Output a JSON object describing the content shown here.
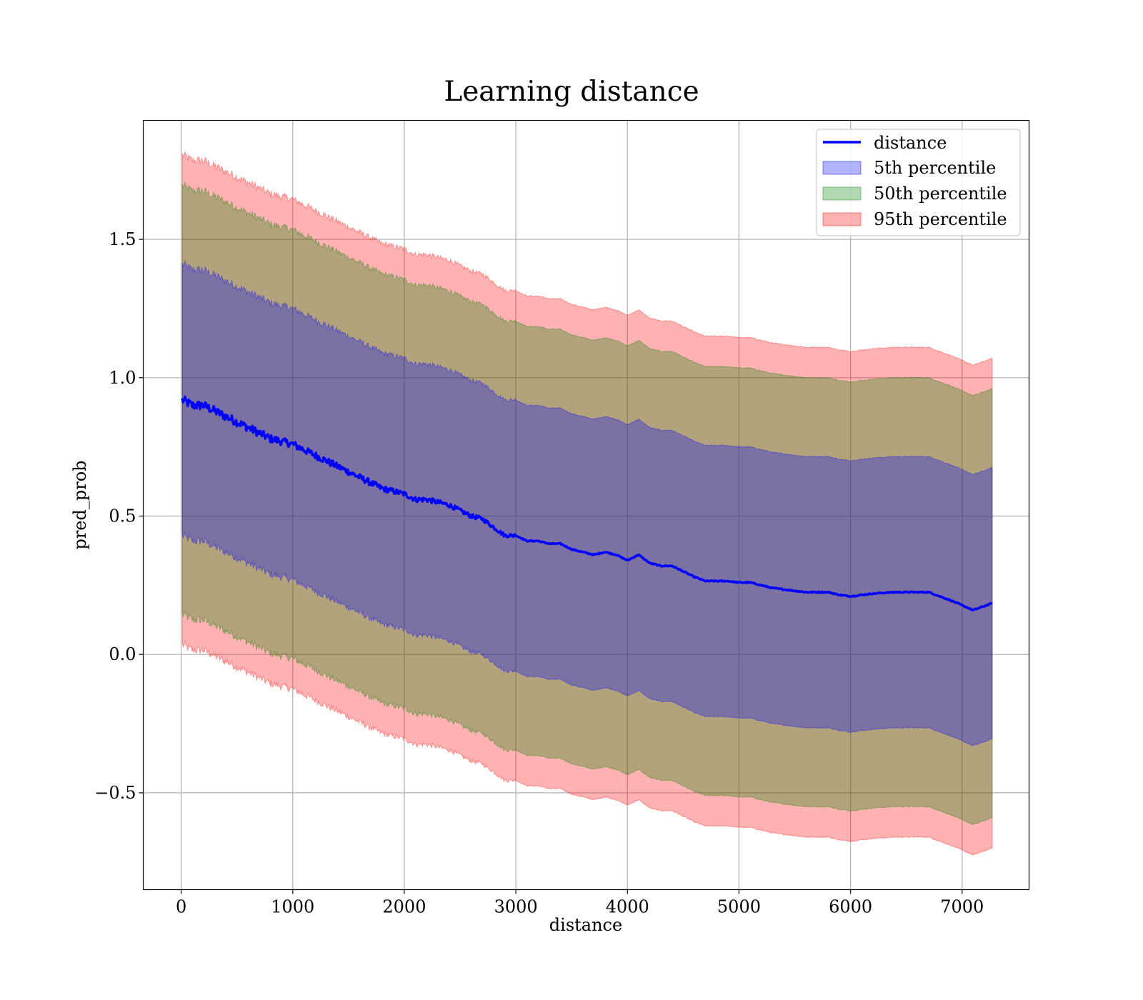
{
  "chart_data": {
    "type": "line",
    "title": "Learning distance",
    "xlabel": "distance",
    "ylabel": "pred_prob",
    "xlim": [
      -340,
      7600
    ],
    "ylim": [
      -0.85,
      1.93
    ],
    "x_ticks": [
      0,
      1000,
      2000,
      3000,
      4000,
      5000,
      6000,
      7000
    ],
    "x_tick_labels": [
      "0",
      "1000",
      "2000",
      "3000",
      "4000",
      "5000",
      "6000",
      "7000"
    ],
    "y_ticks": [
      -0.5,
      0.0,
      0.5,
      1.0,
      1.5
    ],
    "y_tick_labels": [
      "−0.5",
      "0.0",
      "0.5",
      "1.0",
      "1.5"
    ],
    "grid": true,
    "legend_position": "top-right",
    "line": {
      "name": "distance",
      "color": "#0000ff",
      "x": [
        10,
        100,
        200,
        300,
        400,
        500,
        600,
        700,
        800,
        900,
        1000,
        1100,
        1200,
        1300,
        1400,
        1500,
        1600,
        1700,
        1800,
        1900,
        2000,
        2100,
        2200,
        2300,
        2400,
        2500,
        2600,
        2700,
        2800,
        2900,
        3000,
        3100,
        3200,
        3300,
        3400,
        3500,
        3600,
        3700,
        3800,
        3900,
        4000,
        4100,
        4200,
        4300,
        4400,
        4500,
        4600,
        4700,
        4800,
        4900,
        5000,
        5100,
        5200,
        5300,
        5400,
        5500,
        5600,
        5700,
        5800,
        5900,
        6000,
        6100,
        6200,
        6400,
        6600,
        6700,
        6900,
        7100,
        7270
      ],
      "y": [
        0.92,
        0.9,
        0.9,
        0.88,
        0.86,
        0.84,
        0.82,
        0.8,
        0.78,
        0.77,
        0.76,
        0.74,
        0.72,
        0.7,
        0.68,
        0.66,
        0.64,
        0.62,
        0.6,
        0.59,
        0.58,
        0.56,
        0.56,
        0.55,
        0.54,
        0.52,
        0.5,
        0.49,
        0.46,
        0.43,
        0.43,
        0.41,
        0.41,
        0.4,
        0.4,
        0.38,
        0.37,
        0.36,
        0.37,
        0.36,
        0.34,
        0.36,
        0.33,
        0.32,
        0.32,
        0.3,
        0.28,
        0.265,
        0.265,
        0.265,
        0.26,
        0.26,
        0.25,
        0.24,
        0.235,
        0.23,
        0.225,
        0.225,
        0.225,
        0.215,
        0.21,
        0.215,
        0.22,
        0.225,
        0.225,
        0.225,
        0.195,
        0.16,
        0.185
      ]
    },
    "bands": [
      {
        "name": "5th percentile",
        "color": "#0000ff",
        "alpha": 0.3,
        "half_width": 0.49
      },
      {
        "name": "50th percentile",
        "color": "#008000",
        "alpha": 0.3,
        "half_width": 0.775
      },
      {
        "name": "95th percentile",
        "color": "#ff0000",
        "alpha": 0.3,
        "half_width": 0.885
      }
    ]
  }
}
